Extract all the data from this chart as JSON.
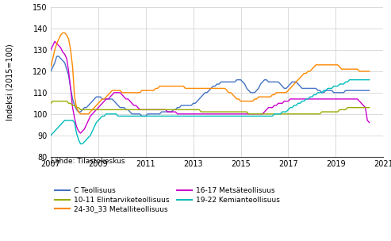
{
  "ylabel": "Indeksi (2015=100)",
  "source": "Lähde: Tilastokeskus",
  "ylim": [
    80,
    150
  ],
  "yticks": [
    80,
    90,
    100,
    110,
    120,
    130,
    140,
    150
  ],
  "xlim": [
    2007.0,
    2021.0
  ],
  "xticks": [
    2007,
    2009,
    2011,
    2013,
    2015,
    2017,
    2019,
    2021
  ],
  "series": [
    {
      "label": "C Teollisuus",
      "color": "#4472C4",
      "data": [
        120,
        122,
        124,
        127,
        127,
        126,
        125,
        124,
        121,
        118,
        112,
        107,
        104,
        102,
        101,
        101,
        102,
        103,
        103,
        104,
        105,
        106,
        107,
        108,
        108,
        108,
        107,
        107,
        107,
        107,
        107,
        107,
        106,
        105,
        104,
        103,
        103,
        103,
        102,
        102,
        101,
        100,
        100,
        100,
        100,
        100,
        99,
        99,
        99,
        100,
        100,
        100,
        100,
        100,
        100,
        100,
        101,
        101,
        101,
        101,
        101,
        101,
        102,
        102,
        103,
        103,
        104,
        104,
        104,
        104,
        104,
        104,
        105,
        105,
        106,
        107,
        108,
        109,
        110,
        110,
        111,
        112,
        113,
        113,
        114,
        114,
        115,
        115,
        115,
        115,
        115,
        115,
        115,
        115,
        116,
        116,
        116,
        115,
        114,
        112,
        111,
        110,
        110,
        110,
        111,
        112,
        114,
        115,
        116,
        116,
        115,
        115,
        115,
        115,
        115,
        115,
        114,
        113,
        112,
        112,
        113,
        114,
        115,
        115,
        115,
        114,
        113,
        112,
        112,
        112,
        112,
        112,
        112,
        112,
        112,
        111,
        111,
        110,
        110,
        111,
        111,
        111,
        111,
        110,
        110,
        110,
        110,
        110,
        110,
        111,
        111,
        111,
        111,
        111,
        111,
        111,
        111,
        111,
        111,
        111,
        111,
        111
      ]
    },
    {
      "label": "16-17 Metsäteollisuus",
      "color": "#CC00CC",
      "data": [
        130,
        132,
        134,
        133,
        132,
        131,
        129,
        128,
        126,
        120,
        112,
        103,
        98,
        94,
        92,
        91,
        92,
        93,
        95,
        97,
        99,
        100,
        101,
        102,
        103,
        104,
        105,
        106,
        107,
        107,
        108,
        109,
        110,
        110,
        110,
        110,
        109,
        108,
        107,
        107,
        106,
        105,
        104,
        104,
        103,
        102,
        102,
        102,
        102,
        102,
        102,
        102,
        102,
        102,
        102,
        102,
        102,
        102,
        102,
        101,
        101,
        101,
        101,
        101,
        100,
        100,
        100,
        100,
        100,
        100,
        100,
        100,
        100,
        100,
        100,
        100,
        100,
        100,
        100,
        100,
        100,
        100,
        100,
        100,
        100,
        100,
        100,
        100,
        100,
        100,
        100,
        100,
        100,
        100,
        100,
        100,
        100,
        100,
        100,
        100,
        100,
        100,
        100,
        100,
        100,
        100,
        100,
        100,
        101,
        102,
        103,
        103,
        103,
        104,
        104,
        105,
        105,
        105,
        106,
        106,
        106,
        107,
        107,
        107,
        107,
        107,
        107,
        107,
        107,
        107,
        107,
        107,
        107,
        107,
        107,
        107,
        107,
        107,
        107,
        107,
        107,
        107,
        107,
        107,
        107,
        107,
        107,
        107,
        107,
        107,
        107,
        107,
        107,
        107,
        107,
        107,
        106,
        105,
        104,
        103,
        97,
        96
      ]
    },
    {
      "label": "10-11 Elintarviketeollisuus",
      "color": "#99AA00",
      "data": [
        105,
        106,
        106,
        106,
        106,
        106,
        106,
        106,
        106,
        105,
        105,
        104,
        104,
        103,
        103,
        102,
        102,
        102,
        102,
        102,
        102,
        102,
        102,
        102,
        102,
        102,
        102,
        102,
        102,
        102,
        102,
        102,
        102,
        102,
        102,
        102,
        102,
        102,
        102,
        102,
        102,
        102,
        102,
        102,
        102,
        102,
        102,
        102,
        102,
        102,
        102,
        102,
        102,
        102,
        102,
        102,
        102,
        102,
        102,
        102,
        102,
        102,
        102,
        102,
        102,
        102,
        102,
        102,
        102,
        102,
        102,
        102,
        102,
        102,
        102,
        102,
        101,
        101,
        101,
        101,
        101,
        101,
        101,
        101,
        101,
        101,
        101,
        101,
        101,
        101,
        101,
        101,
        101,
        101,
        101,
        101,
        101,
        101,
        101,
        101,
        100,
        100,
        100,
        100,
        100,
        100,
        100,
        100,
        100,
        100,
        100,
        100,
        100,
        100,
        100,
        100,
        100,
        100,
        100,
        100,
        100,
        100,
        100,
        100,
        100,
        100,
        100,
        100,
        100,
        100,
        100,
        100,
        100,
        100,
        100,
        100,
        100,
        101,
        101,
        101,
        101,
        101,
        101,
        101,
        101,
        101,
        102,
        102,
        102,
        102,
        103,
        103,
        103,
        103,
        103,
        103,
        103,
        103,
        103,
        103,
        103,
        103
      ]
    },
    {
      "label": "19-22 Kemianteollisuus",
      "color": "#00BBBB",
      "data": [
        90,
        91,
        92,
        93,
        94,
        95,
        96,
        97,
        97,
        97,
        97,
        97,
        96,
        91,
        88,
        86,
        86,
        87,
        88,
        89,
        90,
        92,
        94,
        96,
        97,
        98,
        99,
        99,
        100,
        100,
        100,
        100,
        100,
        100,
        99,
        99,
        99,
        99,
        99,
        99,
        99,
        99,
        99,
        99,
        99,
        99,
        99,
        99,
        99,
        99,
        99,
        99,
        99,
        99,
        99,
        99,
        99,
        99,
        99,
        99,
        99,
        99,
        99,
        99,
        99,
        99,
        99,
        99,
        99,
        99,
        99,
        99,
        99,
        99,
        99,
        99,
        99,
        99,
        99,
        99,
        99,
        99,
        99,
        99,
        99,
        99,
        99,
        99,
        99,
        99,
        99,
        99,
        99,
        99,
        99,
        99,
        99,
        99,
        99,
        99,
        99,
        99,
        99,
        99,
        99,
        99,
        99,
        99,
        99,
        99,
        99,
        99,
        99,
        100,
        100,
        100,
        100,
        101,
        101,
        101,
        102,
        103,
        103,
        104,
        104,
        105,
        105,
        106,
        106,
        107,
        107,
        108,
        108,
        109,
        109,
        110,
        110,
        110,
        111,
        111,
        112,
        112,
        112,
        113,
        113,
        113,
        114,
        114,
        114,
        115,
        115,
        116,
        116,
        116,
        116,
        116,
        116,
        116,
        116,
        116,
        116,
        116
      ]
    },
    {
      "label": "24-30_33 Metalliteollisuus",
      "color": "#FF8800",
      "data": [
        122,
        126,
        130,
        133,
        135,
        137,
        138,
        138,
        137,
        135,
        130,
        122,
        108,
        103,
        101,
        100,
        100,
        100,
        100,
        100,
        101,
        102,
        103,
        104,
        105,
        106,
        107,
        107,
        108,
        109,
        110,
        111,
        111,
        111,
        111,
        111,
        110,
        110,
        110,
        110,
        110,
        110,
        110,
        110,
        110,
        110,
        111,
        111,
        111,
        111,
        111,
        111,
        111,
        112,
        112,
        113,
        113,
        113,
        113,
        113,
        113,
        113,
        113,
        113,
        113,
        113,
        113,
        113,
        112,
        112,
        112,
        112,
        112,
        112,
        112,
        112,
        112,
        112,
        112,
        112,
        112,
        112,
        112,
        112,
        112,
        112,
        112,
        112,
        112,
        111,
        110,
        110,
        109,
        108,
        107,
        107,
        106,
        106,
        106,
        106,
        106,
        106,
        106,
        107,
        107,
        108,
        108,
        108,
        108,
        108,
        108,
        108,
        109,
        109,
        110,
        110,
        110,
        110,
        110,
        110,
        111,
        112,
        113,
        114,
        115,
        116,
        117,
        118,
        119,
        119,
        120,
        120,
        121,
        122,
        123,
        123,
        123,
        123,
        123,
        123,
        123,
        123,
        123,
        123,
        123,
        123,
        122,
        121,
        121,
        121,
        121,
        121,
        121,
        121,
        121,
        121,
        120,
        120,
        120,
        120,
        120,
        120
      ]
    }
  ],
  "legend_order": [
    0,
    2,
    4,
    1,
    3
  ],
  "legend_ncol": 2,
  "background_color": "#ffffff",
  "grid_color": "#cccccc"
}
